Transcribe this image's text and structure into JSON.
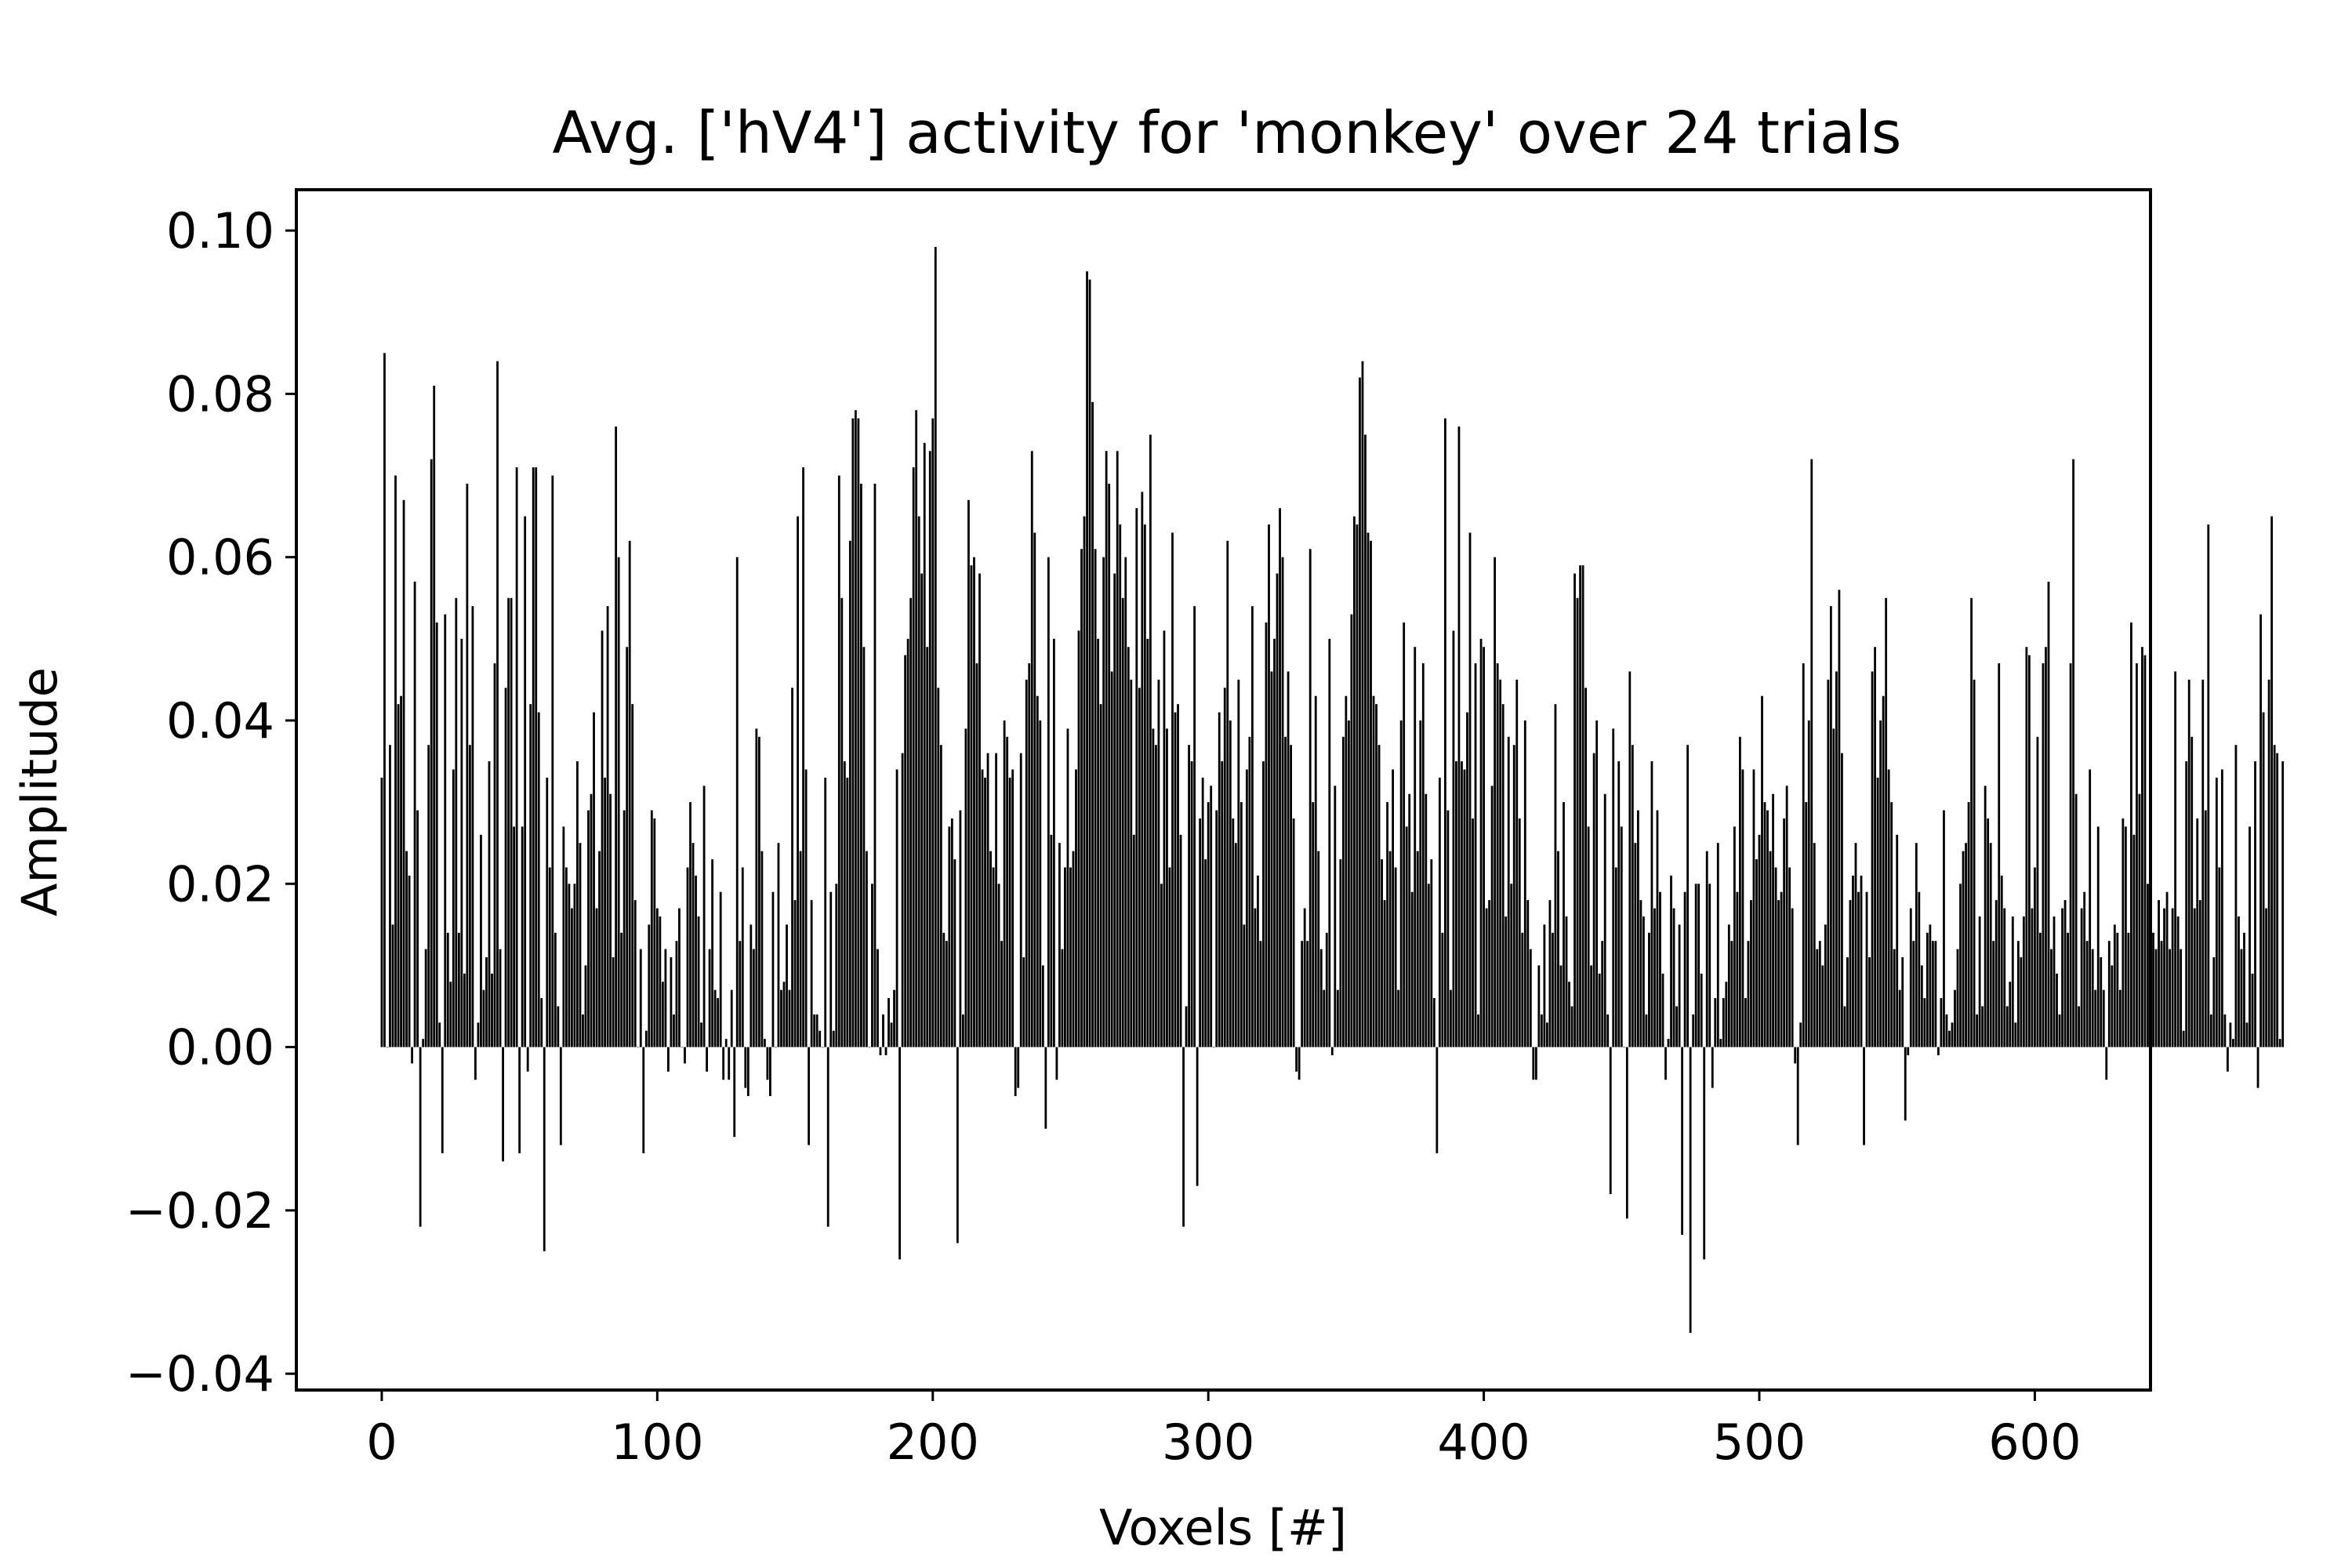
{
  "chart_data": {
    "type": "bar",
    "title": "Avg. ['hV4'] activity for 'monkey' over 24 trials",
    "xlabel": "Voxels [#]",
    "ylabel": "Amplitude",
    "xlim": [
      -31,
      642
    ],
    "ylim": [
      -0.042,
      0.105
    ],
    "x_ticks": [
      0,
      100,
      200,
      300,
      400,
      500,
      600
    ],
    "y_ticks": [
      -0.04,
      -0.02,
      0.0,
      0.02,
      0.04,
      0.06,
      0.08,
      0.1
    ],
    "x_tick_labels": [
      "0",
      "100",
      "200",
      "300",
      "400",
      "500",
      "600"
    ],
    "y_tick_labels": [
      "−0.04",
      "−0.02",
      "0.00",
      "0.02",
      "0.04",
      "0.06",
      "0.08",
      "0.10"
    ],
    "grid": false,
    "bar_color": "#000000",
    "x_start": 0,
    "values": [
      0.033,
      0.085,
      0.0,
      0.037,
      0.015,
      0.07,
      0.042,
      0.043,
      0.067,
      0.024,
      0.021,
      -0.002,
      0.057,
      0.029,
      -0.022,
      0.001,
      0.012,
      0.037,
      0.072,
      0.081,
      0.052,
      0.003,
      -0.013,
      0.053,
      0.014,
      0.008,
      0.034,
      0.055,
      0.014,
      0.05,
      0.009,
      0.069,
      0.037,
      0.054,
      -0.004,
      0.003,
      0.026,
      0.007,
      0.011,
      0.035,
      0.009,
      0.047,
      0.084,
      0.012,
      -0.014,
      0.044,
      0.055,
      0.055,
      0.027,
      0.071,
      -0.013,
      0.027,
      0.065,
      -0.003,
      0.042,
      0.071,
      0.071,
      0.041,
      0.006,
      -0.025,
      0.033,
      0.022,
      0.07,
      0.014,
      0.005,
      -0.012,
      0.027,
      0.022,
      0.02,
      0.017,
      0.02,
      0.035,
      0.025,
      0.004,
      0.01,
      0.029,
      0.031,
      0.041,
      0.017,
      0.024,
      0.051,
      0.033,
      0.054,
      0.031,
      0.011,
      0.076,
      0.06,
      0.014,
      0.029,
      0.049,
      0.062,
      0.042,
      0.018,
      0.0,
      0.012,
      -0.013,
      0.002,
      0.015,
      0.029,
      0.028,
      0.017,
      0.016,
      0.008,
      0.012,
      -0.003,
      0.011,
      0.004,
      0.013,
      0.017,
      0.0,
      -0.002,
      0.022,
      0.03,
      0.025,
      0.021,
      0.016,
      0.003,
      0.032,
      -0.003,
      0.012,
      0.023,
      0.007,
      0.006,
      0.019,
      -0.004,
      0.001,
      -0.004,
      0.007,
      -0.011,
      0.06,
      0.013,
      0.022,
      -0.005,
      -0.006,
      0.015,
      0.012,
      0.039,
      0.038,
      0.024,
      0.001,
      -0.004,
      -0.006,
      0.019,
      0.0,
      0.025,
      0.007,
      0.008,
      0.015,
      0.007,
      0.044,
      0.018,
      0.065,
      0.024,
      0.071,
      0.034,
      -0.012,
      0.018,
      0.004,
      0.004,
      0.002,
      0.0,
      0.033,
      -0.022,
      0.019,
      0.002,
      0.02,
      0.07,
      0.055,
      0.035,
      0.033,
      0.062,
      0.077,
      0.078,
      0.077,
      0.069,
      0.049,
      0.024,
      0.0,
      0.02,
      0.069,
      0.012,
      -0.001,
      0.004,
      -0.001,
      0.006,
      0.003,
      0.007,
      0.034,
      -0.026,
      0.036,
      0.048,
      0.05,
      0.055,
      0.071,
      0.078,
      0.065,
      0.058,
      0.074,
      0.049,
      0.073,
      0.077,
      0.098,
      0.044,
      0.037,
      0.014,
      0.013,
      0.027,
      0.028,
      0.023,
      -0.024,
      0.029,
      0.004,
      0.039,
      0.067,
      0.059,
      0.06,
      0.047,
      0.058,
      0.034,
      0.033,
      0.036,
      0.024,
      0.022,
      0.036,
      0.02,
      0.013,
      0.04,
      0.038,
      0.033,
      0.034,
      -0.006,
      -0.005,
      0.036,
      0.011,
      0.045,
      0.047,
      0.073,
      0.063,
      0.043,
      0.04,
      0.01,
      -0.01,
      0.06,
      0.026,
      0.05,
      -0.004,
      0.025,
      0.012,
      0.022,
      0.039,
      0.022,
      0.024,
      0.034,
      0.051,
      0.061,
      0.065,
      0.095,
      0.094,
      0.079,
      0.061,
      0.05,
      0.042,
      0.06,
      0.073,
      0.069,
      0.046,
      0.058,
      0.073,
      0.064,
      0.055,
      0.06,
      0.049,
      0.045,
      0.026,
      0.066,
      0.044,
      0.068,
      0.064,
      0.05,
      0.075,
      0.039,
      0.037,
      0.045,
      0.02,
      0.051,
      0.039,
      0.022,
      0.063,
      0.041,
      0.042,
      0.026,
      -0.022,
      0.005,
      0.037,
      0.035,
      0.054,
      -0.017,
      0.028,
      0.033,
      0.023,
      0.03,
      0.032,
      0.0,
      0.029,
      0.041,
      0.035,
      0.044,
      0.062,
      0.04,
      0.028,
      0.025,
      0.045,
      0.03,
      0.015,
      0.034,
      0.038,
      0.054,
      0.017,
      0.021,
      0.013,
      0.035,
      0.052,
      0.064,
      0.046,
      0.05,
      0.058,
      0.066,
      0.06,
      0.038,
      0.046,
      0.037,
      0.028,
      -0.003,
      -0.004,
      0.013,
      0.017,
      0.013,
      0.061,
      0.03,
      0.043,
      0.024,
      0.012,
      0.007,
      0.014,
      0.05,
      -0.001,
      0.032,
      0.007,
      0.023,
      0.038,
      0.043,
      0.04,
      0.053,
      0.065,
      0.064,
      0.082,
      0.084,
      0.075,
      0.063,
      0.062,
      0.043,
      0.042,
      0.037,
      0.023,
      0.018,
      0.03,
      0.024,
      0.034,
      0.022,
      0.007,
      0.04,
      0.052,
      0.027,
      0.031,
      0.019,
      0.049,
      0.024,
      0.04,
      0.047,
      0.031,
      0.02,
      0.023,
      0.006,
      -0.013,
      0.033,
      0.014,
      0.077,
      0.029,
      0.007,
      0.051,
      0.035,
      0.076,
      0.035,
      0.034,
      0.041,
      0.063,
      0.028,
      0.047,
      0.004,
      0.05,
      0.049,
      0.017,
      0.018,
      0.032,
      0.06,
      0.047,
      0.045,
      0.042,
      0.016,
      0.038,
      0.02,
      0.037,
      0.045,
      0.028,
      0.014,
      0.04,
      0.018,
      0.012,
      -0.004,
      -0.004,
      0.01,
      0.004,
      0.015,
      0.003,
      0.018,
      0.014,
      0.042,
      0.024,
      0.01,
      0.03,
      0.016,
      0.008,
      0.005,
      0.058,
      0.055,
      0.059,
      0.059,
      0.044,
      0.027,
      0.01,
      0.036,
      0.04,
      0.009,
      0.013,
      0.031,
      0.004,
      -0.018,
      0.039,
      0.022,
      0.035,
      0.027,
      0.0,
      -0.021,
      0.046,
      0.037,
      0.025,
      0.029,
      0.018,
      0.016,
      0.004,
      0.014,
      0.035,
      0.017,
      0.029,
      0.019,
      0.009,
      -0.004,
      0.001,
      0.021,
      0.017,
      0.005,
      0.015,
      -0.023,
      0.019,
      0.037,
      -0.035,
      0.004,
      0.02,
      0.02,
      0.009,
      -0.026,
      0.024,
      0.02,
      -0.005,
      0.006,
      0.025,
      0.001,
      0.006,
      0.008,
      0.015,
      0.013,
      0.027,
      0.019,
      0.038,
      0.034,
      0.006,
      0.013,
      0.018,
      0.034,
      0.023,
      0.026,
      0.043,
      0.03,
      0.029,
      0.024,
      0.031,
      0.022,
      0.018,
      0.019,
      0.028,
      0.032,
      0.022,
      0.017,
      -0.002,
      -0.012,
      0.003,
      0.047,
      0.03,
      0.04,
      0.072,
      0.025,
      0.012,
      0.013,
      0.01,
      0.015,
      0.045,
      0.054,
      0.039,
      0.046,
      0.056,
      0.036,
      0.005,
      0.011,
      0.018,
      0.021,
      0.025,
      0.019,
      0.021,
      -0.012,
      0.019,
      0.011,
      0.046,
      0.049,
      0.033,
      0.04,
      0.043,
      0.055,
      0.034,
      0.03,
      0.012,
      0.026,
      0.007,
      0.011,
      -0.009,
      -0.001,
      0.017,
      0.013,
      0.025,
      0.019,
      0.01,
      0.006,
      0.014,
      0.015,
      0.013,
      0.013,
      -0.001,
      0.006,
      0.029,
      0.004,
      0.002,
      0.003,
      0.007,
      0.012,
      0.02,
      0.024,
      0.025,
      0.03,
      0.055,
      0.045,
      0.004,
      0.016,
      0.005,
      0.032,
      0.028,
      0.025,
      0.013,
      0.018,
      0.047,
      0.021,
      0.017,
      0.005,
      0.008,
      0.016,
      0.003,
      0.013,
      0.011,
      0.016,
      0.049,
      0.048,
      0.017,
      0.022,
      0.038,
      0.014,
      0.047,
      0.049,
      0.057,
      0.012,
      0.016,
      0.009,
      0.004,
      0.017,
      0.018,
      0.014,
      0.047,
      0.072,
      0.031,
      0.005,
      0.017,
      0.019,
      0.013,
      0.034,
      0.012,
      0.007,
      0.027,
      0.011,
      0.007,
      -0.004,
      0.013,
      0.01,
      0.015,
      0.014,
      0.007,
      0.028,
      0.027,
      0.014,
      0.052,
      0.026,
      0.047,
      0.031,
      0.049,
      0.048,
      0.02,
      0.011,
      0.014,
      0.012,
      0.018,
      0.013,
      0.017,
      0.019,
      0.012,
      0.017,
      0.046,
      0.016,
      0.012,
      0.002,
      0.035,
      0.045,
      0.038,
      0.017,
      0.028,
      0.018,
      0.045,
      0.029,
      0.064,
      0.004,
      0.011,
      0.033,
      0.022,
      0.034,
      0.004,
      -0.003,
      0.003,
      0.001,
      0.037,
      0.016,
      0.012,
      0.014,
      0.003,
      0.027,
      0.009,
      0.035,
      -0.005,
      0.053,
      0.041,
      0.017,
      0.045,
      0.065,
      0.037,
      0.036,
      0.001,
      0.035
    ]
  }
}
